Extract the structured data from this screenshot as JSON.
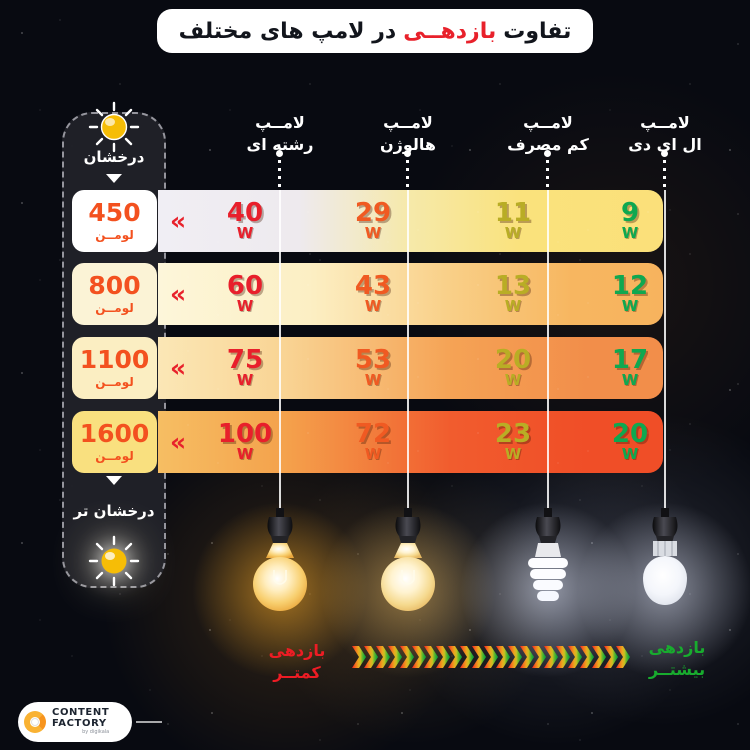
{
  "title": {
    "pre": "تفاوت",
    "highlight": "بازدهــی",
    "post": "در لامپ های مختلف"
  },
  "sidebar": {
    "top_label": "درخشان",
    "bottom_label": "درخشان تر"
  },
  "columns": [
    {
      "l1": "لامــپ",
      "l2": "رشته ای"
    },
    {
      "l1": "لامــپ",
      "l2": "هالوژن"
    },
    {
      "l1": "لامــپ",
      "l2": "کم مصرف"
    },
    {
      "l1": "لامــپ",
      "l2": "ال ای دی"
    }
  ],
  "rows": [
    {
      "lumen": "450",
      "unit": "لومــن",
      "watts": [
        "40",
        "29",
        "11",
        "9"
      ]
    },
    {
      "lumen": "800",
      "unit": "لومــن",
      "watts": [
        "60",
        "43",
        "13",
        "12"
      ]
    },
    {
      "lumen": "1100",
      "unit": "لومــن",
      "watts": [
        "75",
        "53",
        "20",
        "17"
      ]
    },
    {
      "lumen": "1600",
      "unit": "لومــن",
      "watts": [
        "100",
        "72",
        "23",
        "20"
      ]
    }
  ],
  "watt_unit": "W",
  "more_chevron": "«",
  "legend": {
    "less_1": "بازدهی",
    "less_2": "کمتــر",
    "more_1": "بازدهی",
    "more_2": "بیشتــر"
  },
  "logo": {
    "name1": "CONTENT",
    "name2": "FACTORY",
    "byline": "by digikala"
  },
  "colors": {
    "highlight_red": "#e8212b",
    "watt_red": "#e81f2b",
    "watt_orange": "#f05a22",
    "watt_olive": "#b9ad25",
    "watt_green": "#0fa850",
    "legend_less": "#ed1c24",
    "legend_more": "#18ac2e",
    "lumen_text": "#f3511f",
    "background": "#080a11"
  },
  "chart_data": {
    "type": "table",
    "title": "تفاوت بازدهی در لامپ های مختلف",
    "categories": [
      "لامپ رشته ای",
      "لامپ هالوژن",
      "لامپ کم مصرف",
      "لامپ ال ای دی"
    ],
    "brightness_lumens": [
      450,
      800,
      1100,
      1600
    ],
    "watts_by_lumen": [
      [
        40,
        29,
        11,
        9
      ],
      [
        60,
        43,
        13,
        12
      ],
      [
        75,
        53,
        20,
        17
      ],
      [
        100,
        72,
        23,
        20
      ]
    ],
    "unit": "W",
    "axis_notes": {
      "left_scale_top": "درخشان",
      "left_scale_bottom": "درخشان تر",
      "efficiency_left": "بازدهی کمتر",
      "efficiency_right": "بازدهی بیشتر"
    }
  }
}
